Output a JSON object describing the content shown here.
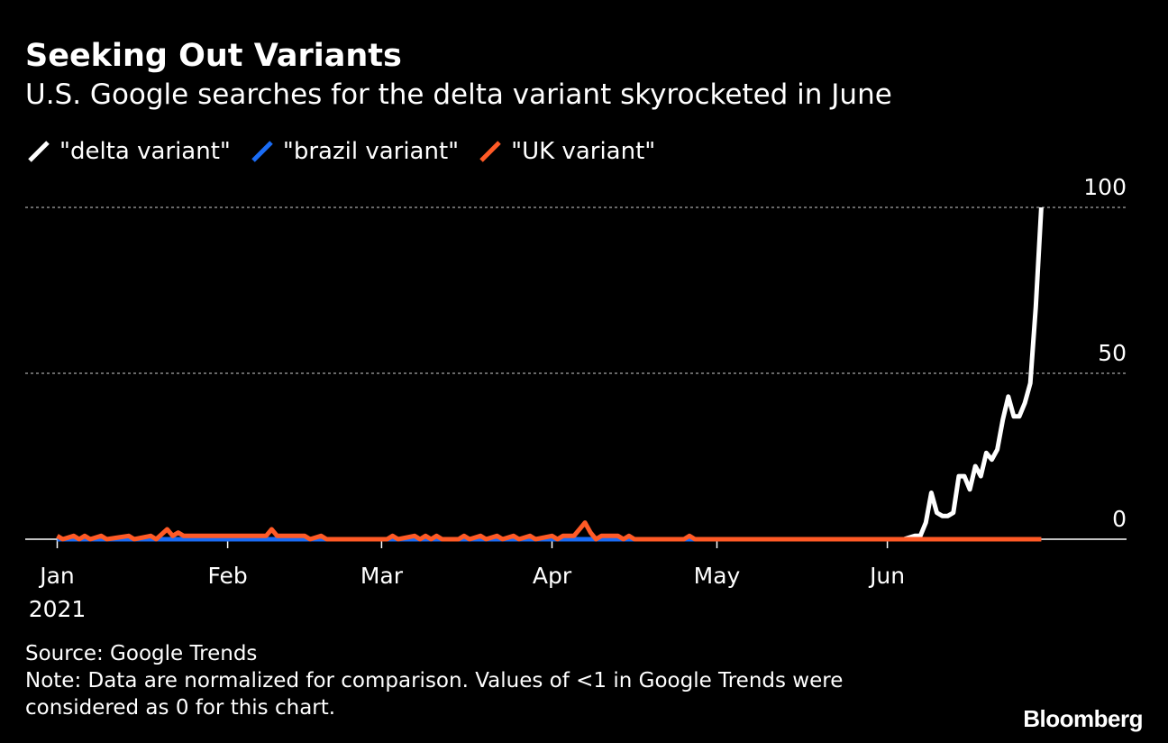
{
  "title": "Seeking Out Variants",
  "subtitle": "U.S. Google searches for the delta variant skyrocketed in June",
  "legend": [
    {
      "label": "\"delta variant\"",
      "color": "#ffffff"
    },
    {
      "label": "\"brazil variant\"",
      "color": "#1a6cf5"
    },
    {
      "label": "\"UK variant\"",
      "color": "#ff5a26"
    }
  ],
  "footer": {
    "source": "Source: Google Trends",
    "note_line1": "Note: Data are normalized for comparison. Values of <1 in Google Trends were",
    "note_line2": "considered as 0 for this chart."
  },
  "brand": "Bloomberg",
  "chart_data": {
    "type": "line",
    "title": "Seeking Out Variants",
    "subtitle": "U.S. Google searches for the delta variant skyrocketed in June",
    "x_unit": "day of year 2021 (1 = Jan 1)",
    "xlim": [
      -1,
      187
    ],
    "ylim": [
      0,
      100
    ],
    "yticks": [
      0,
      50,
      100
    ],
    "ytick_labels": [
      "0",
      "50",
      "100"
    ],
    "xticks": [
      {
        "day": 1,
        "label": "Jan",
        "sublabel": "2021"
      },
      {
        "day": 32,
        "label": "Feb"
      },
      {
        "day": 60,
        "label": "Mar"
      },
      {
        "day": 91,
        "label": "Apr"
      },
      {
        "day": 121,
        "label": "May"
      },
      {
        "day": 152,
        "label": "Jun"
      }
    ],
    "grid": "horizontal dotted",
    "legend_position": "top-left",
    "series": [
      {
        "name": "\"delta variant\"",
        "color": "#ffffff",
        "points": [
          [
            1,
            0
          ],
          [
            150,
            0
          ],
          [
            152,
            0
          ],
          [
            155,
            0
          ],
          [
            157,
            1
          ],
          [
            158,
            1
          ],
          [
            159,
            5
          ],
          [
            160,
            14
          ],
          [
            161,
            8
          ],
          [
            162,
            7
          ],
          [
            163,
            7
          ],
          [
            164,
            8
          ],
          [
            165,
            19
          ],
          [
            166,
            19
          ],
          [
            167,
            15
          ],
          [
            168,
            22
          ],
          [
            169,
            19
          ],
          [
            170,
            26
          ],
          [
            171,
            24
          ],
          [
            172,
            27
          ],
          [
            173,
            36
          ],
          [
            174,
            43
          ],
          [
            175,
            37
          ],
          [
            176,
            37
          ],
          [
            177,
            41
          ],
          [
            178,
            47
          ],
          [
            179,
            70
          ],
          [
            180,
            100
          ]
        ]
      },
      {
        "name": "\"brazil variant\"",
        "color": "#1a6cf5",
        "points": [
          [
            1,
            0
          ],
          [
            100,
            0
          ],
          [
            105,
            0
          ],
          [
            180,
            0
          ]
        ]
      },
      {
        "name": "\"UK variant\"",
        "color": "#ff5a26",
        "points": [
          [
            1,
            1
          ],
          [
            2,
            0
          ],
          [
            4,
            1
          ],
          [
            5,
            0
          ],
          [
            6,
            1
          ],
          [
            7,
            0
          ],
          [
            9,
            1
          ],
          [
            10,
            0
          ],
          [
            14,
            1
          ],
          [
            15,
            0
          ],
          [
            18,
            1
          ],
          [
            19,
            0
          ],
          [
            21,
            3
          ],
          [
            22,
            1
          ],
          [
            23,
            2
          ],
          [
            24,
            1
          ],
          [
            39,
            1
          ],
          [
            40,
            3
          ],
          [
            41,
            1
          ],
          [
            46,
            1
          ],
          [
            47,
            0
          ],
          [
            49,
            1
          ],
          [
            50,
            0
          ],
          [
            61,
            0
          ],
          [
            62,
            1
          ],
          [
            63,
            0
          ],
          [
            66,
            1
          ],
          [
            67,
            0
          ],
          [
            68,
            1
          ],
          [
            69,
            0
          ],
          [
            70,
            1
          ],
          [
            71,
            0
          ],
          [
            74,
            0
          ],
          [
            75,
            1
          ],
          [
            76,
            0
          ],
          [
            78,
            1
          ],
          [
            79,
            0
          ],
          [
            81,
            1
          ],
          [
            82,
            0
          ],
          [
            84,
            1
          ],
          [
            85,
            0
          ],
          [
            87,
            1
          ],
          [
            88,
            0
          ],
          [
            91,
            1
          ],
          [
            92,
            0
          ],
          [
            93,
            1
          ],
          [
            94,
            1
          ],
          [
            95,
            1
          ],
          [
            96,
            3
          ],
          [
            97,
            5
          ],
          [
            98,
            2
          ],
          [
            99,
            0
          ],
          [
            100,
            1
          ],
          [
            103,
            1
          ],
          [
            104,
            0
          ],
          [
            105,
            1
          ],
          [
            106,
            0
          ],
          [
            115,
            0
          ],
          [
            116,
            1
          ],
          [
            117,
            0
          ],
          [
            180,
            0
          ]
        ]
      }
    ]
  }
}
